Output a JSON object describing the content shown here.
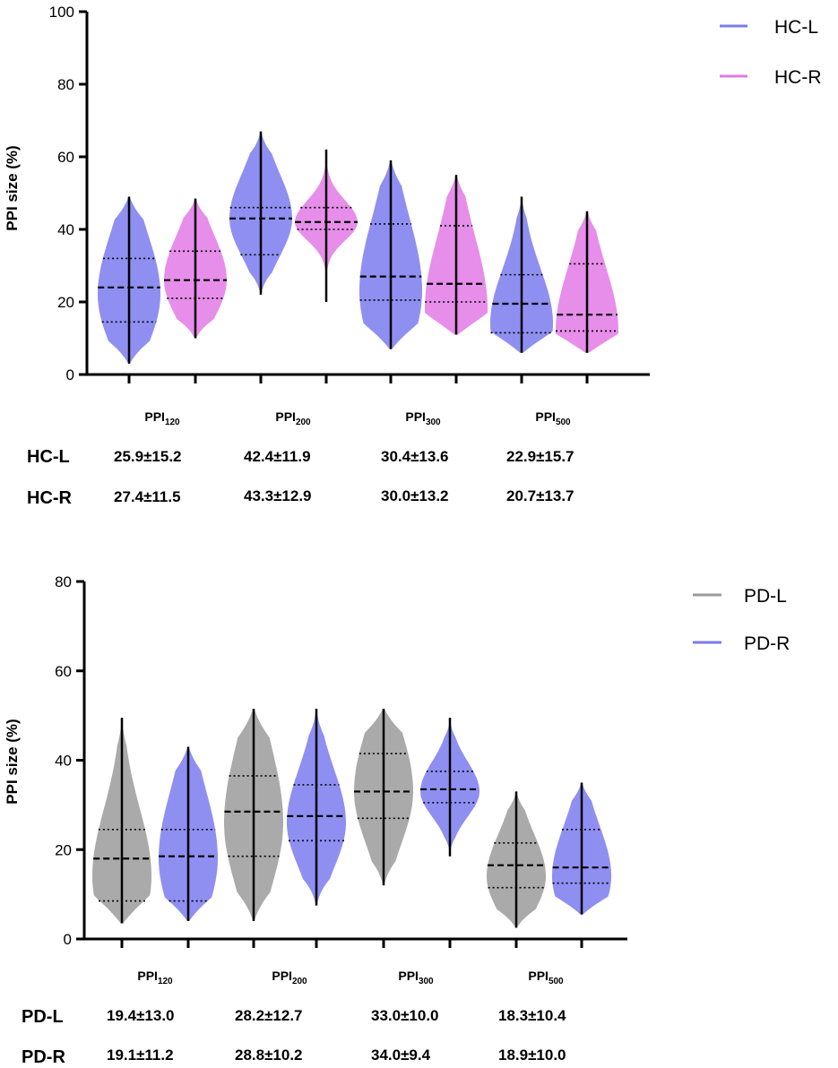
{
  "chart_data": [
    {
      "type": "violin",
      "ylabel": "PPI size (%)",
      "ylim": [
        0,
        100
      ],
      "yticks": [
        "0",
        "20",
        "40",
        "60",
        "80",
        "100"
      ],
      "categories": [
        {
          "base": "PPI",
          "sub": "120"
        },
        {
          "base": "PPI",
          "sub": "200"
        },
        {
          "base": "PPI",
          "sub": "300"
        },
        {
          "base": "PPI",
          "sub": "500"
        }
      ],
      "series": [
        {
          "name": "HC-L",
          "color": "#7b7bf0",
          "violins": [
            {
              "min": 3,
              "max": 49,
              "median": 24,
              "q1": 14.5,
              "q3": 32,
              "peak": 22
            },
            {
              "min": 22,
              "max": 67,
              "median": 43,
              "q1": 33,
              "q3": 46,
              "peak": 43
            },
            {
              "min": 7,
              "max": 59,
              "median": 27,
              "q1": 20.5,
              "q3": 41.5,
              "peak": 23
            },
            {
              "min": 6,
              "max": 49,
              "median": 19.5,
              "q1": 11.5,
              "q3": 27.5,
              "peak": 14
            }
          ],
          "summary": [
            "25.9±15.2",
            "42.4±11.9",
            "30.4±13.6",
            "22.9±15.7"
          ]
        },
        {
          "name": "HC-R",
          "color": "#e27ae6",
          "violins": [
            {
              "min": 10,
              "max": 48.5,
              "median": 26,
              "q1": 21,
              "q3": 34,
              "peak": 26
            },
            {
              "min": 20,
              "max": 62,
              "median": 42,
              "q1": 40,
              "q3": 46,
              "peak": 42
            },
            {
              "min": 11,
              "max": 55,
              "median": 25,
              "q1": 20,
              "q3": 41,
              "peak": 18
            },
            {
              "min": 6,
              "max": 45,
              "median": 16.5,
              "q1": 12,
              "q3": 30.5,
              "peak": 12
            }
          ],
          "summary": [
            "27.4±11.5",
            "43.3±12.9",
            "30.0±13.2",
            "20.7±13.7"
          ]
        }
      ]
    },
    {
      "type": "violin",
      "ylabel": "PPI size (%)",
      "ylim": [
        0,
        80
      ],
      "yticks": [
        "0",
        "20",
        "40",
        "60",
        "80"
      ],
      "categories": [
        {
          "base": "PPI",
          "sub": "120"
        },
        {
          "base": "PPI",
          "sub": "200"
        },
        {
          "base": "PPI",
          "sub": "300"
        },
        {
          "base": "PPI",
          "sub": "500"
        }
      ],
      "series": [
        {
          "name": "PD-L",
          "color": "#9b9b9b",
          "violins": [
            {
              "min": 3.5,
              "max": 49.5,
              "median": 18,
              "q1": 8.5,
              "q3": 24.5,
              "peak": 14
            },
            {
              "min": 4,
              "max": 51.5,
              "median": 28.5,
              "q1": 18.5,
              "q3": 36.5,
              "peak": 26
            },
            {
              "min": 12,
              "max": 51.5,
              "median": 33,
              "q1": 27,
              "q3": 41.5,
              "peak": 33
            },
            {
              "min": 2.5,
              "max": 33,
              "median": 16.5,
              "q1": 11.5,
              "q3": 21.5,
              "peak": 14
            }
          ],
          "summary": [
            "19.4±13.0",
            "28.2±12.7",
            "33.0±10.0",
            "18.3±10.4"
          ]
        },
        {
          "name": "PD-R",
          "color": "#7b7bf0",
          "violins": [
            {
              "min": 4,
              "max": 43,
              "median": 18.5,
              "q1": 8.5,
              "q3": 24.5,
              "peak": 18
            },
            {
              "min": 7.5,
              "max": 51.5,
              "median": 27.5,
              "q1": 22,
              "q3": 34.5,
              "peak": 26
            },
            {
              "min": 18.5,
              "max": 49.5,
              "median": 33.5,
              "q1": 30.5,
              "q3": 37.5,
              "peak": 33
            },
            {
              "min": 5.5,
              "max": 35,
              "median": 16,
              "q1": 12.5,
              "q3": 24.5,
              "peak": 14
            }
          ],
          "summary": [
            "19.1±11.2",
            "28.8±10.2",
            "34.0±9.4",
            "18.9±10.0"
          ]
        }
      ]
    }
  ]
}
